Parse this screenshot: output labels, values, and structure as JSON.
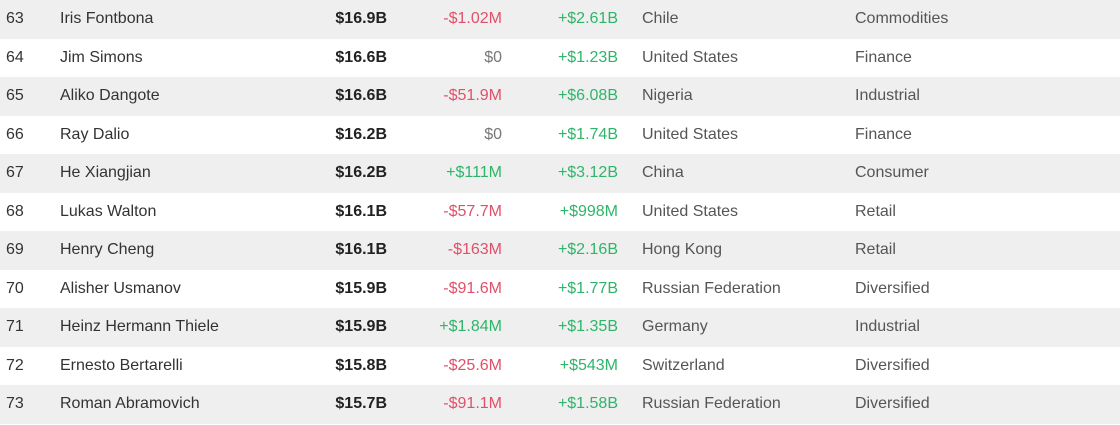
{
  "table": {
    "rows": [
      [
        "63",
        "Iris Fontbona",
        "$16.9B",
        "-$1.02M",
        "+$2.61B",
        "Chile",
        "Commodities"
      ],
      [
        "64",
        "Jim Simons",
        "$16.6B",
        "$0",
        "+$1.23B",
        "United States",
        "Finance"
      ],
      [
        "65",
        "Aliko Dangote",
        "$16.6B",
        "-$51.9M",
        "+$6.08B",
        "Nigeria",
        "Industrial"
      ],
      [
        "66",
        "Ray Dalio",
        "$16.2B",
        "$0",
        "+$1.74B",
        "United States",
        "Finance"
      ],
      [
        "67",
        "He Xiangjian",
        "$16.2B",
        "+$111M",
        "+$3.12B",
        "China",
        "Consumer"
      ],
      [
        "68",
        "Lukas Walton",
        "$16.1B",
        "-$57.7M",
        "+$998M",
        "United States",
        "Retail"
      ],
      [
        "69",
        "Henry Cheng",
        "$16.1B",
        "-$163M",
        "+$2.16B",
        "Hong Kong",
        "Retail"
      ],
      [
        "70",
        "Alisher Usmanov",
        "$15.9B",
        "-$91.6M",
        "+$1.77B",
        "Russian Federation",
        "Diversified"
      ],
      [
        "71",
        "Heinz Hermann Thiele",
        "$15.9B",
        "+$1.84M",
        "+$1.35B",
        "Germany",
        "Industrial"
      ],
      [
        "72",
        "Ernesto Bertarelli",
        "$15.8B",
        "-$25.6M",
        "+$543M",
        "Switzerland",
        "Diversified"
      ],
      [
        "73",
        "Roman Abramovich",
        "$15.7B",
        "-$91.1M",
        "+$1.58B",
        "Russian Federation",
        "Diversified"
      ]
    ]
  }
}
